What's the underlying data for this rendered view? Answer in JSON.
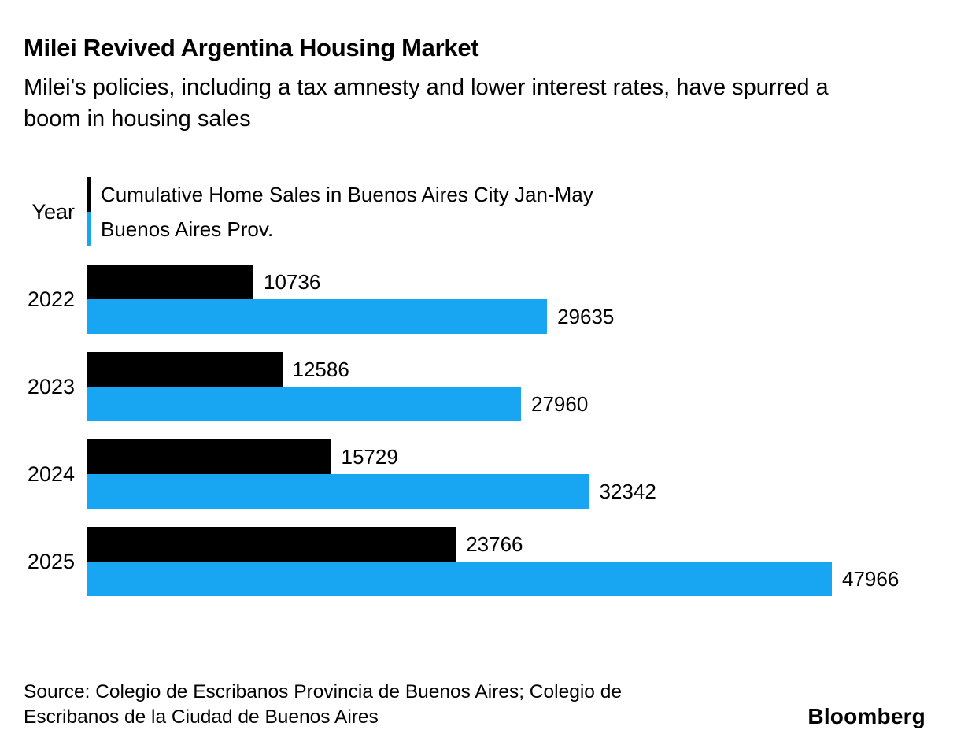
{
  "header": {
    "title": "Milei Revived Argentina Housing Market",
    "subtitle": "Milei's policies, including a tax amnesty and lower interest rates, have spurred a boom in housing sales"
  },
  "legend": {
    "axis_label": "Year",
    "series": [
      {
        "label": "Cumulative Home Sales in Buenos Aires City Jan-May",
        "color": "#000000"
      },
      {
        "label": "Buenos Aires Prov.",
        "color": "#18a6f2"
      }
    ]
  },
  "chart_data": {
    "type": "bar",
    "orientation": "horizontal",
    "title": "Milei Revived Argentina Housing Market",
    "ylabel": "Year",
    "xlabel": "",
    "categories": [
      "2022",
      "2023",
      "2024",
      "2025"
    ],
    "series": [
      {
        "name": "Cumulative Home Sales in Buenos Aires City Jan-May",
        "color": "#000000",
        "values": [
          10736,
          12586,
          15729,
          23766
        ]
      },
      {
        "name": "Buenos Aires Prov.",
        "color": "#18a6f2",
        "values": [
          29635,
          27960,
          32342,
          47966
        ]
      }
    ],
    "xlim": [
      0,
      47966
    ],
    "grid": false,
    "value_labels": true,
    "legend_position": "top-left"
  },
  "footer": {
    "source": "Source: Colegio de Escribanos Provincia de Buenos Aires; Colegio de Escribanos de la Ciudad de Buenos Aires",
    "brand": "Bloomberg"
  }
}
